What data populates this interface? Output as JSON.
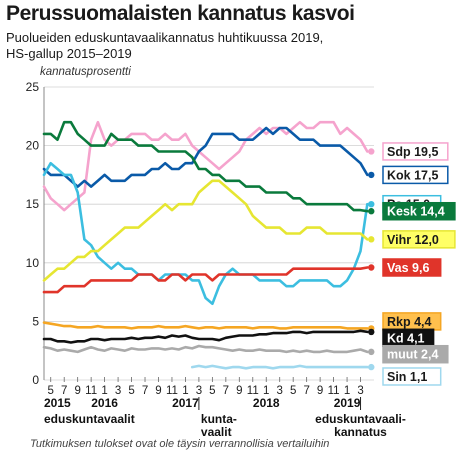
{
  "chart_data": {
    "type": "line",
    "title": "Perussuomalaisten kannatus kasvoi",
    "subtitle_lines": [
      "Puolueiden eduskuntavaalikannatus huhtikuussa 2019,",
      "HS-gallup 2015–2019"
    ],
    "ylabel": "kannatusprosentti",
    "ylim": [
      0,
      25
    ],
    "yticks": [
      0,
      5,
      10,
      15,
      20,
      25
    ],
    "xlim": [
      0,
      49
    ],
    "month_ticks": [
      {
        "x": 1,
        "label": "5"
      },
      {
        "x": 3,
        "label": "7"
      },
      {
        "x": 5,
        "label": "9"
      },
      {
        "x": 7,
        "label": "11"
      },
      {
        "x": 9,
        "label": "1"
      },
      {
        "x": 11,
        "label": "3"
      },
      {
        "x": 13,
        "label": "5"
      },
      {
        "x": 15,
        "label": "7"
      },
      {
        "x": 17,
        "label": "9"
      },
      {
        "x": 19,
        "label": "11"
      },
      {
        "x": 21,
        "label": "1"
      },
      {
        "x": 23,
        "label": "3"
      },
      {
        "x": 25,
        "label": "5"
      },
      {
        "x": 27,
        "label": "7"
      },
      {
        "x": 29,
        "label": "9"
      },
      {
        "x": 31,
        "label": "11"
      },
      {
        "x": 33,
        "label": "1"
      },
      {
        "x": 35,
        "label": "3"
      },
      {
        "x": 37,
        "label": "5"
      },
      {
        "x": 39,
        "label": "7"
      },
      {
        "x": 41,
        "label": "9"
      },
      {
        "x": 43,
        "label": "11"
      },
      {
        "x": 45,
        "label": "1"
      },
      {
        "x": 47,
        "label": "3"
      }
    ],
    "year_labels": [
      {
        "x": 0,
        "label": "2015",
        "align": "start"
      },
      {
        "x": 9,
        "label": "2016",
        "align": "middle"
      },
      {
        "x": 21,
        "label": "2017",
        "align": "middle"
      },
      {
        "x": 33,
        "label": "2018",
        "align": "middle"
      },
      {
        "x": 45,
        "label": "2019",
        "align": "middle"
      }
    ],
    "events": [
      {
        "x": 0,
        "lines": [
          "eduskuntavaalit"
        ],
        "align": "start",
        "marker": false
      },
      {
        "x": 23,
        "lines": [
          "kunta-",
          "vaalit"
        ],
        "align": "start",
        "marker": true
      },
      {
        "x": 47,
        "lines": [
          "eduskuntavaali-",
          "kannatus"
        ],
        "align": "middle",
        "marker": true
      }
    ],
    "series": [
      {
        "name": "Sdp",
        "label": "Sdp 19,5",
        "color": "#f5a3cd",
        "label_bg": "#ffffff",
        "label_fg": "#1a1a1a",
        "border": "#f5a3cd",
        "label_y": 19.5,
        "values": [
          16.5,
          15.5,
          15,
          14.5,
          15,
          15.5,
          16,
          20.5,
          22,
          20.5,
          20,
          20.5,
          20.5,
          21,
          21,
          21,
          20.5,
          20.5,
          21,
          20.5,
          20.5,
          21,
          20,
          19.5,
          19,
          18.5,
          18,
          18.5,
          19,
          19.5,
          20.5,
          21,
          21.5,
          21,
          21.5,
          21.5,
          21,
          21.5,
          22,
          21.5,
          21.5,
          22,
          22,
          22,
          21,
          21.5,
          21,
          20.5,
          19.5
        ]
      },
      {
        "name": "Kok",
        "label": "Kok 17,5",
        "color": "#0a5aa8",
        "label_bg": "#ffffff",
        "label_fg": "#1a1a1a",
        "border": "#0a5aa8",
        "label_y": 17.5,
        "values": [
          18,
          17.5,
          17.5,
          17.5,
          17,
          16.5,
          17,
          16.5,
          17,
          17.5,
          17,
          17,
          17,
          17.5,
          17.5,
          17.5,
          18,
          18,
          18.5,
          18,
          18,
          18.5,
          18.5,
          19.5,
          20,
          21,
          21,
          21,
          21,
          20.5,
          20.5,
          20.5,
          21,
          21.5,
          21,
          21.5,
          21.5,
          21,
          20.5,
          20.5,
          20.5,
          20,
          20,
          20,
          20,
          19.5,
          19,
          18.5,
          17.5
        ]
      },
      {
        "name": "Ps",
        "label": "Ps 15,0",
        "color": "#3cbee0",
        "label_bg": "#ffffff",
        "label_fg": "#1a1a1a",
        "border": "#3cbee0",
        "label_y": 15.0,
        "values": [
          17.5,
          18.5,
          18,
          17.5,
          17.5,
          16,
          12,
          11.5,
          10.5,
          10,
          9.5,
          10,
          9.5,
          9.5,
          9,
          9,
          9,
          8.5,
          9,
          9,
          9,
          9,
          8.5,
          8.5,
          7,
          6.5,
          8,
          9,
          9.5,
          9,
          9,
          9,
          8.5,
          8.5,
          8.5,
          8.5,
          8,
          8,
          8.5,
          8.5,
          8.5,
          8.5,
          8.5,
          8,
          8,
          8.5,
          9.5,
          11,
          15
        ]
      },
      {
        "name": "Kesk",
        "label": "Kesk 14,4",
        "color": "#0a7a3c",
        "label_bg": "#0a7a3c",
        "label_fg": "#ffffff",
        "border": "#0a7a3c",
        "label_y": 14.4,
        "values": [
          21,
          21,
          20.5,
          22,
          22,
          21,
          20.5,
          20,
          20,
          20,
          21,
          20.5,
          20.5,
          20.5,
          20,
          20,
          20,
          19.5,
          19.5,
          19.5,
          19.5,
          19.5,
          19,
          18,
          18,
          17.5,
          17.5,
          17,
          17,
          17,
          16.5,
          16.5,
          16.5,
          16,
          16,
          16,
          16,
          15.5,
          15.5,
          15,
          15,
          15,
          15,
          15,
          15,
          15,
          14.5,
          14.5,
          14.4
        ]
      },
      {
        "name": "Vihr",
        "label": "Vihr 12,0",
        "color": "#e6e632",
        "label_bg": "#ffff66",
        "label_fg": "#1a1a1a",
        "border": "#e6e632",
        "label_y": 12.0,
        "values": [
          8.5,
          9,
          9.5,
          9.5,
          10,
          10.5,
          10.5,
          11,
          11,
          11.5,
          12,
          12.5,
          13,
          13,
          13,
          13.5,
          14,
          14.5,
          15,
          14.5,
          15,
          15,
          15,
          16,
          16.5,
          17,
          17,
          16.5,
          16,
          15.5,
          15,
          14,
          13.5,
          13,
          13,
          13,
          12.5,
          12.5,
          12.5,
          13,
          13,
          13,
          12.5,
          12.5,
          12.5,
          12.5,
          12.5,
          12.5,
          12
        ]
      },
      {
        "name": "Vas",
        "label": "Vas 9,6",
        "color": "#e0342a",
        "label_bg": "#e0342a",
        "label_fg": "#ffffff",
        "border": "#e0342a",
        "label_y": 9.6,
        "values": [
          7.5,
          7.5,
          7.5,
          8,
          8,
          8,
          8,
          8.5,
          8.5,
          8.5,
          8.5,
          8.5,
          8.5,
          8.5,
          9,
          9,
          9,
          8.5,
          8.5,
          9,
          9,
          8.5,
          9,
          9,
          9,
          8.5,
          9,
          9,
          9,
          9,
          9,
          9,
          9,
          9,
          9,
          9,
          9,
          9.5,
          9.5,
          9.5,
          9.5,
          9.5,
          9.5,
          9.5,
          9.5,
          9.5,
          9.5,
          9.5,
          9.6
        ]
      },
      {
        "name": "Rkp",
        "label": "Rkp 4,4",
        "color": "#f5a623",
        "label_bg": "#ffc04d",
        "label_fg": "#1a1a1a",
        "border": "#f5a623",
        "label_y": 5.0,
        "values": [
          4.9,
          4.8,
          4.7,
          4.6,
          4.6,
          4.5,
          4.5,
          4.5,
          4.6,
          4.5,
          4.5,
          4.5,
          4.5,
          4.4,
          4.5,
          4.5,
          4.5,
          4.6,
          4.5,
          4.5,
          4.5,
          4.6,
          4.5,
          4.4,
          4.5,
          4.5,
          4.4,
          4.5,
          4.5,
          4.5,
          4.5,
          4.4,
          4.5,
          4.5,
          4.5,
          4.4,
          4.4,
          4.5,
          4.5,
          4.5,
          4.5,
          4.5,
          4.5,
          4.5,
          4.5,
          4.4,
          4.4,
          4.4,
          4.4
        ]
      },
      {
        "name": "Kd",
        "label": "Kd 4,1",
        "color": "#111111",
        "label_bg": "#111111",
        "label_fg": "#ffffff",
        "border": "#111111",
        "label_y": 3.6,
        "values": [
          3.5,
          3.5,
          3.3,
          3.3,
          3.2,
          3.3,
          3.3,
          3.5,
          3.5,
          3.4,
          3.5,
          3.5,
          3.5,
          3.6,
          3.5,
          3.6,
          3.6,
          3.7,
          3.6,
          3.8,
          3.7,
          3.8,
          3.6,
          3.5,
          3.5,
          3.5,
          3.4,
          3.6,
          3.7,
          3.8,
          3.8,
          3.8,
          3.9,
          3.9,
          4,
          4,
          4,
          4.1,
          4.1,
          4,
          4.1,
          4.1,
          4.1,
          4.1,
          4.1,
          4.1,
          4.1,
          4.2,
          4.1
        ]
      },
      {
        "name": "muut",
        "label": "muut 2,4",
        "color": "#aaaaaa",
        "label_bg": "#aaaaaa",
        "label_fg": "#ffffff",
        "border": "#aaaaaa",
        "label_y": 2.2,
        "values": [
          2.8,
          2.7,
          2.5,
          2.6,
          2.5,
          2.4,
          2.6,
          2.8,
          2.6,
          2.5,
          2.7,
          2.6,
          2.5,
          2.7,
          2.6,
          2.6,
          2.7,
          2.7,
          2.6,
          2.7,
          2.6,
          2.8,
          2.7,
          2.9,
          2.8,
          2.8,
          2.7,
          2.6,
          2.5,
          2.6,
          2.5,
          2.5,
          2.6,
          2.5,
          2.5,
          2.5,
          2.4,
          2.5,
          2.4,
          2.5,
          2.4,
          2.4,
          2.5,
          2.4,
          2.4,
          2.4,
          2.5,
          2.6,
          2.4
        ]
      },
      {
        "name": "Sin",
        "label": "Sin 1,1",
        "color": "#9fd8ee",
        "label_bg": "#ffffff",
        "label_fg": "#1a1a1a",
        "border": "#9fd8ee",
        "label_y": 0.3,
        "start": 22,
        "values": [
          1.1,
          1.2,
          1.1,
          1.2,
          1.1,
          1.0,
          1.1,
          1.1,
          1.0,
          1.1,
          1.1,
          1.1,
          1.0,
          1.1,
          1.1,
          1.1,
          1.2,
          1.1,
          1.1,
          1.1,
          1.1,
          1.1,
          1.1,
          1.1,
          1.1,
          1.1,
          1.1
        ]
      }
    ],
    "grid": true,
    "legend": "right-end labels"
  },
  "footnote": "Tutkimuksen tulokset ovat ole täysin verrannollisia vertailuihin"
}
